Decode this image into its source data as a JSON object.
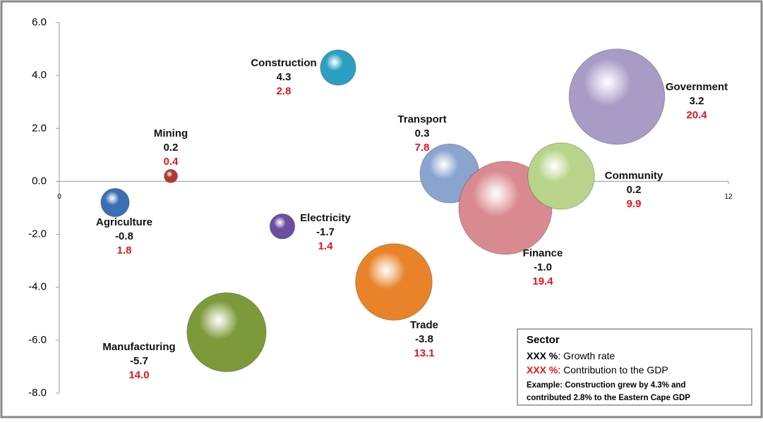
{
  "chart_data": {
    "type": "bubble",
    "categories": [
      "Agriculture",
      "Mining",
      "Manufacturing",
      "Electricity",
      "Construction",
      "Trade",
      "Transport",
      "Finance",
      "Community",
      "Government"
    ],
    "x": [
      1,
      2,
      3,
      4,
      5,
      6,
      7,
      8,
      9,
      10
    ],
    "values": [
      -0.8,
      0.2,
      -5.7,
      -1.7,
      4.3,
      -3.8,
      0.3,
      -1.0,
      0.2,
      3.2
    ],
    "value_labels": [
      "-0.8",
      "0.2",
      "-5.7",
      "-1.7",
      "4.3",
      "-3.8",
      "0.3",
      "-1.0",
      "0.2",
      "3.2"
    ],
    "sizes": [
      1.8,
      0.4,
      14.0,
      1.4,
      2.8,
      13.1,
      7.8,
      19.4,
      9.9,
      20.4
    ],
    "size_labels": [
      "1.8",
      "0.4",
      "14.0",
      "1.4",
      "2.8",
      "13.1",
      "7.8",
      "19.4",
      "9.9",
      "20.4"
    ],
    "colors": [
      "#3a6fb5",
      "#b03a30",
      "#7d9a3a",
      "#6a4fa0",
      "#2a9fbf",
      "#e8832a",
      "#8aa4d0",
      "#d88a90",
      "#b8d48a",
      "#a89cc6"
    ],
    "size_label_color": "#e8141c",
    "xlim": [
      0,
      12
    ],
    "xticks": [
      0,
      12
    ],
    "ylim": [
      -8,
      6
    ],
    "yticks": [
      {
        "value": -8,
        "label": "-8.0"
      },
      {
        "value": -6,
        "label": "-6.0"
      },
      {
        "value": -4,
        "label": "-4.0"
      },
      {
        "value": -2,
        "label": "-2.0"
      },
      {
        "value": 0,
        "label": "0.0"
      },
      {
        "value": 2,
        "label": "2.0"
      },
      {
        "value": 4,
        "label": "4.0"
      },
      {
        "value": 6,
        "label": "6.0"
      }
    ],
    "annotation": {
      "title": "Sector",
      "growth_key": "XXX %",
      "growth_text": ":  Growth rate",
      "contribution_key": "XXX %",
      "contribution_text": ":  Contribution to the GDP",
      "example_line1": "Example: Construction grew by 4.3% and",
      "example_line2": "contributed 2.8% to the Eastern Cape GDP"
    }
  }
}
